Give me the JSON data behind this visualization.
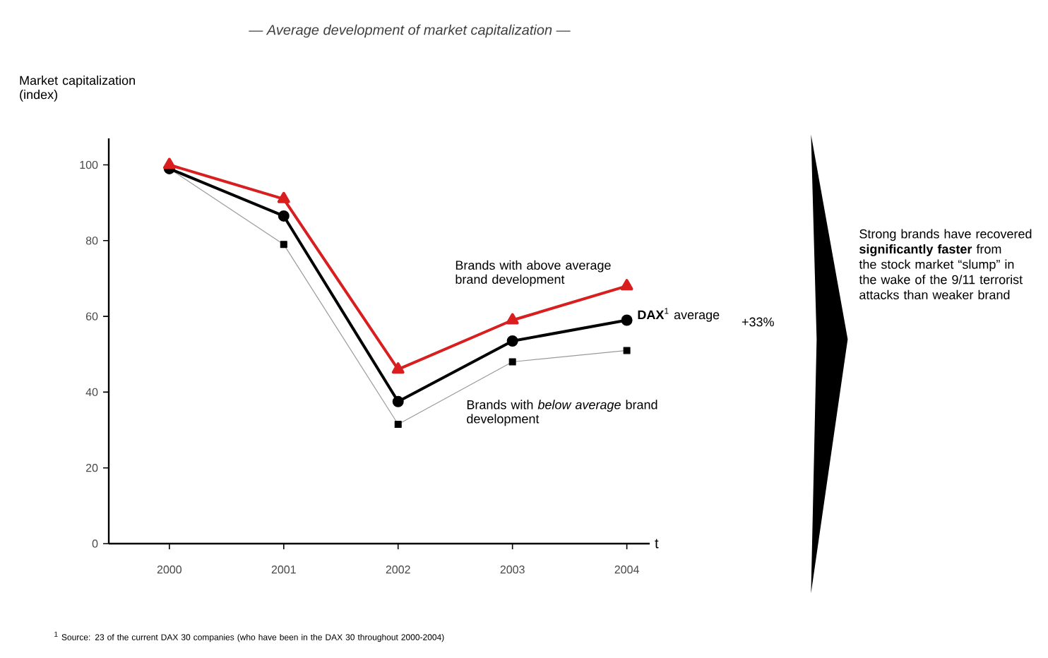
{
  "chart_data": {
    "type": "line",
    "title": "— Average development of market capitalization —",
    "xlabel": "t",
    "ylabel": "Market capitalization (index)",
    "x": [
      2000,
      2001,
      2002,
      2003,
      2004
    ],
    "xlim": [
      1999.47,
      2004.2
    ],
    "xticks": [
      2000,
      2001,
      2002,
      2003,
      2004
    ],
    "ylim": [
      0,
      107
    ],
    "yticks": [
      0,
      20,
      40,
      60,
      80,
      100
    ],
    "series": [
      {
        "name": "Brands with above average brand development",
        "color": "#d81e1e",
        "marker": "triangle",
        "values": [
          100,
          91,
          46,
          59,
          68
        ]
      },
      {
        "name": "**DAX**$^{1}$ average",
        "color": "#000000",
        "marker": "circle",
        "values": [
          99,
          86.5,
          37.5,
          53.5,
          59
        ]
      },
      {
        "name": "Brands with *below average* brand development",
        "color": "#9a9a9a",
        "marker": "square",
        "values": [
          99,
          79,
          31.5,
          48,
          51
        ]
      }
    ],
    "annotations": [
      "+33%",
      "Strong brands have recovered **significantly faster** from the stock market “slump” in the wake of the 9/11 terrorist attacks than weaker brand",
      "$^{1}$ Source: 23 of the current DAX 30 companies (who have been in the DAX 30 throughout 2000-2004)"
    ],
    "grid": false,
    "legend": false
  }
}
